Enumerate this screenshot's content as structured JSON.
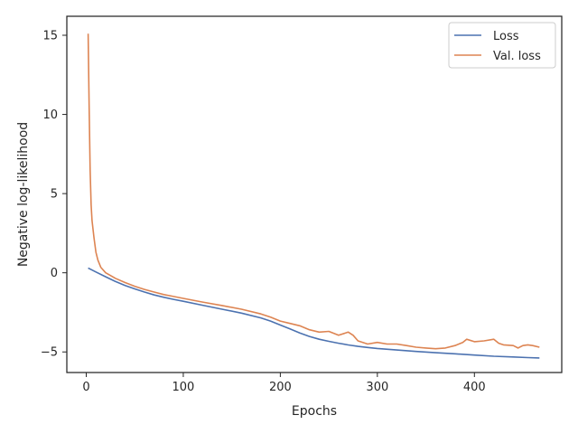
{
  "chart_data": {
    "type": "line",
    "title": "",
    "xlabel": "Epochs",
    "ylabel": "Negative log-likelihood",
    "xlim": [
      -20,
      490
    ],
    "ylim": [
      -6.3,
      16.2
    ],
    "xticks": [
      0,
      100,
      200,
      300,
      400
    ],
    "yticks": [
      -5,
      0,
      5,
      10,
      15
    ],
    "grid": false,
    "legend_position": "top-right",
    "series": [
      {
        "name": "Loss",
        "color": "#4c72b0",
        "points": [
          [
            2,
            0.3
          ],
          [
            10,
            0.05
          ],
          [
            20,
            -0.25
          ],
          [
            30,
            -0.55
          ],
          [
            40,
            -0.8
          ],
          [
            50,
            -1.02
          ],
          [
            60,
            -1.22
          ],
          [
            70,
            -1.4
          ],
          [
            80,
            -1.55
          ],
          [
            90,
            -1.68
          ],
          [
            100,
            -1.8
          ],
          [
            120,
            -2.05
          ],
          [
            140,
            -2.3
          ],
          [
            160,
            -2.55
          ],
          [
            180,
            -2.85
          ],
          [
            190,
            -3.05
          ],
          [
            200,
            -3.3
          ],
          [
            210,
            -3.55
          ],
          [
            220,
            -3.8
          ],
          [
            230,
            -4.02
          ],
          [
            240,
            -4.2
          ],
          [
            250,
            -4.33
          ],
          [
            260,
            -4.45
          ],
          [
            270,
            -4.56
          ],
          [
            280,
            -4.65
          ],
          [
            290,
            -4.72
          ],
          [
            300,
            -4.78
          ],
          [
            320,
            -4.88
          ],
          [
            340,
            -4.97
          ],
          [
            360,
            -5.05
          ],
          [
            380,
            -5.12
          ],
          [
            400,
            -5.2
          ],
          [
            420,
            -5.27
          ],
          [
            440,
            -5.32
          ],
          [
            455,
            -5.36
          ],
          [
            467,
            -5.38
          ]
        ]
      },
      {
        "name": "Val. loss",
        "color": "#dd8452",
        "points": [
          [
            2,
            15.1
          ],
          [
            3,
            10.5
          ],
          [
            4,
            6.5
          ],
          [
            5,
            4.3
          ],
          [
            6,
            3.3
          ],
          [
            8,
            2.2
          ],
          [
            10,
            1.3
          ],
          [
            12,
            0.8
          ],
          [
            15,
            0.35
          ],
          [
            20,
            0.0
          ],
          [
            30,
            -0.35
          ],
          [
            40,
            -0.62
          ],
          [
            50,
            -0.85
          ],
          [
            60,
            -1.05
          ],
          [
            70,
            -1.22
          ],
          [
            80,
            -1.38
          ],
          [
            90,
            -1.5
          ],
          [
            100,
            -1.62
          ],
          [
            120,
            -1.85
          ],
          [
            140,
            -2.07
          ],
          [
            160,
            -2.3
          ],
          [
            180,
            -2.6
          ],
          [
            190,
            -2.8
          ],
          [
            200,
            -3.05
          ],
          [
            210,
            -3.2
          ],
          [
            220,
            -3.35
          ],
          [
            230,
            -3.6
          ],
          [
            240,
            -3.75
          ],
          [
            250,
            -3.7
          ],
          [
            260,
            -3.95
          ],
          [
            270,
            -3.75
          ],
          [
            275,
            -3.95
          ],
          [
            280,
            -4.3
          ],
          [
            290,
            -4.5
          ],
          [
            300,
            -4.4
          ],
          [
            310,
            -4.5
          ],
          [
            320,
            -4.5
          ],
          [
            330,
            -4.6
          ],
          [
            340,
            -4.7
          ],
          [
            350,
            -4.75
          ],
          [
            360,
            -4.8
          ],
          [
            370,
            -4.75
          ],
          [
            380,
            -4.6
          ],
          [
            388,
            -4.4
          ],
          [
            392,
            -4.2
          ],
          [
            400,
            -4.35
          ],
          [
            410,
            -4.3
          ],
          [
            420,
            -4.2
          ],
          [
            425,
            -4.45
          ],
          [
            430,
            -4.55
          ],
          [
            440,
            -4.6
          ],
          [
            445,
            -4.75
          ],
          [
            450,
            -4.6
          ],
          [
            455,
            -4.55
          ],
          [
            460,
            -4.6
          ],
          [
            467,
            -4.7
          ]
        ]
      }
    ]
  }
}
